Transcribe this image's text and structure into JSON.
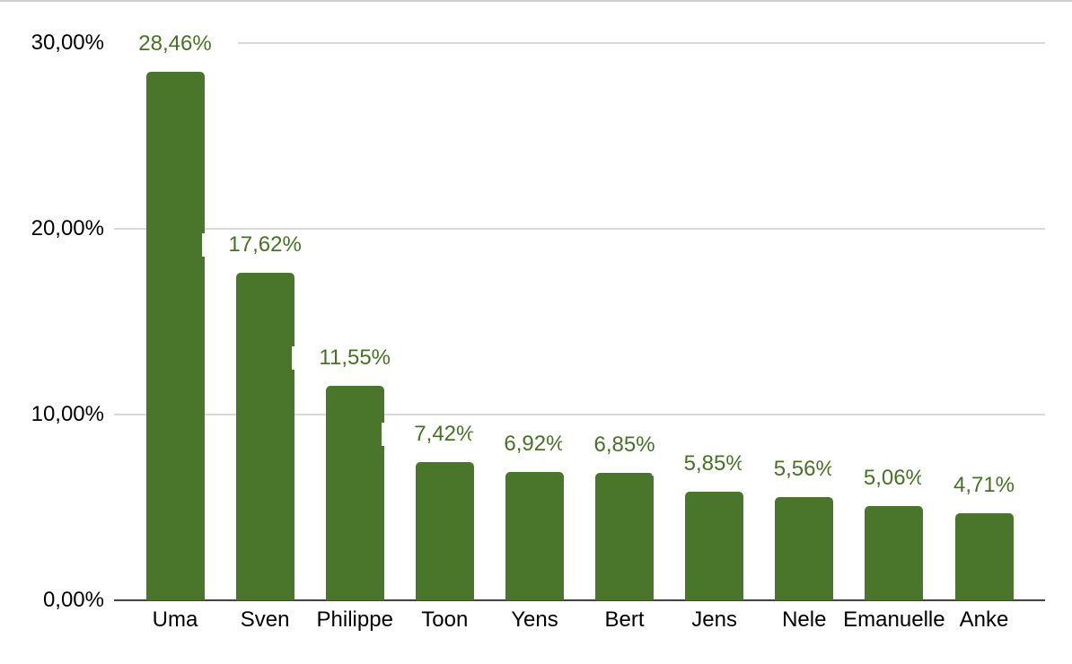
{
  "chart_data": {
    "type": "bar",
    "categories": [
      "Uma",
      "Sven",
      "Philippe",
      "Toon",
      "Yens",
      "Bert",
      "Jens",
      "Nele",
      "Emanuelle",
      "Anke"
    ],
    "values": [
      28.46,
      17.62,
      11.55,
      7.42,
      6.92,
      6.85,
      5.85,
      5.56,
      5.06,
      4.71
    ],
    "value_labels": [
      "28,46%",
      "17,62%",
      "11,55%",
      "7,42%",
      "6,92%",
      "6,85%",
      "5,85%",
      "5,56%",
      "5,06%",
      "4,71%"
    ],
    "title": "",
    "xlabel": "",
    "ylabel": "",
    "ylim": [
      0,
      30
    ],
    "y_ticks": [
      0,
      10,
      20,
      30
    ],
    "y_tick_labels": [
      "0,00%",
      "10,00%",
      "20,00%",
      "30,00%"
    ],
    "grid": true,
    "legend": "none",
    "colors": {
      "bar": "#4a762b",
      "data_label": "#457323",
      "gridline": "#d9d9d9",
      "baseline": "#424242",
      "axis_text": "#000000",
      "top_border": "#cfcfcf",
      "background": "#ffffff"
    }
  }
}
